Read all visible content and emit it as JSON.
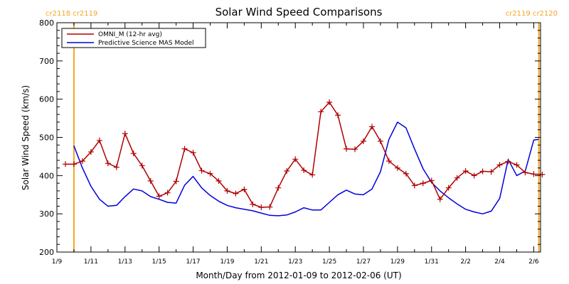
{
  "chart_data": {
    "type": "line",
    "title": "Solar Wind Speed Comparisons",
    "xlabel": "Month/Day from 2012-01-09 to 2012-02-06 (UT)",
    "ylabel": "Solar Wind Speed (km/s)",
    "x_unit": "days since 2012-01-09 00:00 UT",
    "xlim": [
      0,
      28.4
    ],
    "ylim": [
      200,
      800
    ],
    "x_ticks": [
      {
        "x": 0,
        "label": "1/9"
      },
      {
        "x": 2,
        "label": "1/11"
      },
      {
        "x": 4,
        "label": "1/13"
      },
      {
        "x": 6,
        "label": "1/15"
      },
      {
        "x": 8,
        "label": "1/17"
      },
      {
        "x": 10,
        "label": "1/19"
      },
      {
        "x": 12,
        "label": "1/21"
      },
      {
        "x": 14,
        "label": "1/23"
      },
      {
        "x": 16,
        "label": "1/25"
      },
      {
        "x": 18,
        "label": "1/27"
      },
      {
        "x": 20,
        "label": "1/29"
      },
      {
        "x": 22,
        "label": "1/31"
      },
      {
        "x": 24,
        "label": "2/2"
      },
      {
        "x": 26,
        "label": "2/4"
      },
      {
        "x": 28,
        "label": "2/6"
      }
    ],
    "y_ticks": [
      {
        "y": 200,
        "label": "200"
      },
      {
        "y": 300,
        "label": "300"
      },
      {
        "y": 400,
        "label": "400"
      },
      {
        "y": 500,
        "label": "500"
      },
      {
        "y": 600,
        "label": "600"
      },
      {
        "y": 700,
        "label": "700"
      },
      {
        "y": 800,
        "label": "800"
      }
    ],
    "grid": false,
    "legend_position": "top-left",
    "carrington_markers": [
      {
        "x": 1.0,
        "label": "cr2118 cr2119",
        "color": "#f5a623"
      },
      {
        "x": 28.3,
        "label": "cr2119 cr2120",
        "color": "#f5a623"
      }
    ],
    "series": [
      {
        "name": "OMNI_M (12-hr avg)",
        "color": "#b00000",
        "marker": "+",
        "x": [
          0.5,
          1.0,
          1.5,
          2.0,
          2.5,
          3.0,
          3.5,
          4.0,
          4.5,
          5.0,
          5.5,
          6.0,
          6.5,
          7.0,
          7.5,
          8.0,
          8.5,
          9.0,
          9.5,
          10.0,
          10.5,
          11.0,
          11.5,
          12.0,
          12.5,
          13.0,
          13.5,
          14.0,
          14.5,
          15.0,
          15.5,
          16.0,
          16.5,
          17.0,
          17.5,
          18.0,
          18.5,
          19.0,
          19.5,
          20.0,
          20.5,
          21.0,
          21.5,
          22.0,
          22.5,
          23.0,
          23.5,
          24.0,
          24.5,
          25.0,
          25.5,
          26.0,
          26.5,
          27.0,
          27.5,
          28.0,
          28.5
        ],
        "y": [
          430,
          430,
          438,
          462,
          492,
          432,
          422,
          510,
          458,
          426,
          386,
          346,
          355,
          385,
          470,
          460,
          413,
          405,
          386,
          360,
          353,
          364,
          325,
          317,
          318,
          368,
          412,
          443,
          414,
          402,
          567,
          592,
          558,
          470,
          469,
          490,
          528,
          490,
          438,
          420,
          405,
          374,
          380,
          387,
          338,
          368,
          394,
          412,
          400,
          411,
          410,
          428,
          437,
          428,
          408,
          404,
          403
        ]
      },
      {
        "name": "Predictive Science MAS Model",
        "color": "#0000dd",
        "x": [
          1.0,
          1.5,
          2.0,
          2.5,
          3.0,
          3.5,
          4.0,
          4.5,
          5.0,
          5.5,
          6.0,
          6.5,
          7.0,
          7.5,
          8.0,
          8.5,
          9.0,
          9.5,
          10.0,
          10.5,
          11.0,
          11.5,
          12.0,
          12.5,
          13.0,
          13.5,
          14.0,
          14.5,
          15.0,
          15.5,
          16.0,
          16.5,
          17.0,
          17.5,
          18.0,
          18.5,
          19.0,
          19.5,
          20.0,
          20.5,
          21.0,
          21.5,
          22.0,
          22.5,
          23.0,
          23.5,
          24.0,
          24.5,
          25.0,
          25.5,
          26.0,
          26.5,
          27.0,
          27.5,
          28.0,
          28.3
        ],
        "y": [
          478,
          420,
          372,
          338,
          320,
          322,
          345,
          365,
          360,
          345,
          338,
          330,
          328,
          375,
          398,
          368,
          348,
          333,
          322,
          316,
          312,
          308,
          302,
          296,
          295,
          297,
          305,
          316,
          310,
          310,
          330,
          350,
          362,
          352,
          350,
          365,
          410,
          495,
          540,
          525,
          470,
          418,
          382,
          360,
          342,
          326,
          312,
          305,
          300,
          307,
          340,
          442,
          400,
          412,
          493,
          495
        ]
      }
    ]
  }
}
